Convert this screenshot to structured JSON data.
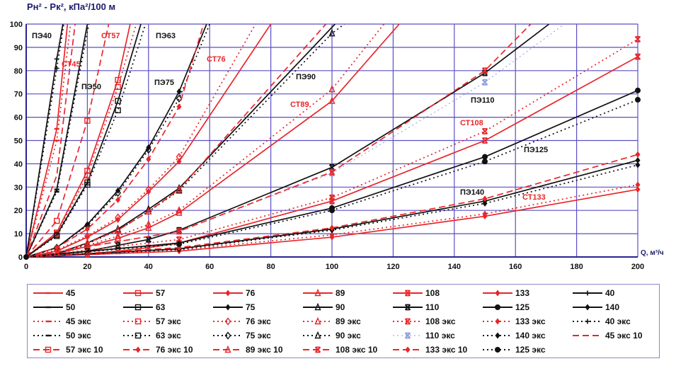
{
  "chart_data": {
    "type": "line",
    "title": "",
    "ylabel": "Pн² - Pк², кПа²/100 м",
    "xlabel": "Q, м³/ч",
    "xlim": [
      0,
      200
    ],
    "ylim": [
      0,
      100
    ],
    "xticks": [
      0,
      20,
      40,
      60,
      80,
      100,
      120,
      140,
      160,
      180,
      200
    ],
    "yticks": [
      0,
      10,
      20,
      30,
      40,
      50,
      60,
      70,
      80,
      90,
      100
    ],
    "grid": true,
    "legend_position": "bottom",
    "colors": {
      "red": "#e8262a",
      "black": "#111111",
      "blue": "#8a9ad8",
      "grid": "#5b4fc4"
    },
    "series": [
      {
        "name": "45",
        "color": "red",
        "dash": "solid",
        "marker": "bar",
        "x": [
          0,
          10,
          13.5
        ],
        "y": [
          0,
          55,
          100
        ]
      },
      {
        "name": "57",
        "color": "red",
        "dash": "solid",
        "marker": "square",
        "x": [
          0,
          10,
          20,
          30,
          34
        ],
        "y": [
          0,
          10.5,
          37,
          76,
          100
        ]
      },
      {
        "name": "76",
        "color": "red",
        "dash": "solid",
        "marker": "diamond",
        "x": [
          0,
          10,
          20,
          30,
          40,
          50,
          80
        ],
        "y": [
          0,
          2.5,
          8.5,
          16,
          28,
          41,
          100
        ]
      },
      {
        "name": "89",
        "color": "red",
        "dash": "solid",
        "marker": "triangle",
        "x": [
          0,
          10,
          20,
          30,
          40,
          50,
          100,
          122
        ],
        "y": [
          0,
          1.5,
          4.5,
          8,
          12.5,
          19,
          67,
          100
        ]
      },
      {
        "name": "108",
        "color": "red",
        "dash": "solid",
        "marker": "star",
        "x": [
          0,
          20,
          30,
          40,
          50,
          100,
          150,
          200
        ],
        "y": [
          0,
          1.2,
          2.5,
          4,
          6,
          24,
          50,
          86
        ]
      },
      {
        "name": "133",
        "color": "red",
        "dash": "solid",
        "marker": "diamond",
        "x": [
          0,
          50,
          100,
          150,
          200
        ],
        "y": [
          0,
          2.5,
          8.5,
          17.5,
          29
        ]
      },
      {
        "name": "40",
        "color": "black",
        "dash": "solid",
        "marker": "plus",
        "x": [
          0,
          10,
          12
        ],
        "y": [
          0,
          85,
          100
        ]
      },
      {
        "name": "50",
        "color": "black",
        "dash": "solid",
        "marker": "bar",
        "x": [
          0,
          10,
          20
        ],
        "y": [
          0,
          29,
          100
        ]
      },
      {
        "name": "63",
        "color": "black",
        "dash": "solid",
        "marker": "square",
        "x": [
          0,
          10,
          20,
          30,
          37.5
        ],
        "y": [
          0,
          9.5,
          32,
          67,
          100
        ]
      },
      {
        "name": "75",
        "color": "black",
        "dash": "solid",
        "marker": "diamond",
        "x": [
          0,
          10,
          20,
          30,
          40,
          50,
          59
        ],
        "y": [
          0,
          4,
          14,
          28.5,
          47,
          71,
          100
        ]
      },
      {
        "name": "90",
        "color": "black",
        "dash": "solid",
        "marker": "triangle",
        "x": [
          0,
          10,
          20,
          30,
          40,
          50,
          101
        ],
        "y": [
          0,
          1.5,
          6,
          12,
          20.5,
          29.5,
          100
        ]
      },
      {
        "name": "110",
        "color": "black",
        "dash": "solid",
        "marker": "star",
        "x": [
          0,
          20,
          30,
          40,
          50,
          100,
          150,
          171
        ],
        "y": [
          0,
          2.5,
          5,
          7.5,
          11.5,
          38.5,
          79,
          100
        ]
      },
      {
        "name": "125",
        "color": "black",
        "dash": "solid",
        "marker": "circle",
        "x": [
          0,
          50,
          100,
          150,
          200
        ],
        "y": [
          0,
          6,
          21,
          43,
          71.5
        ]
      },
      {
        "name": "140",
        "color": "black",
        "dash": "solid",
        "marker": "diamond",
        "x": [
          0,
          50,
          100,
          150,
          200
        ],
        "y": [
          0,
          3.5,
          12,
          24,
          41.5
        ]
      },
      {
        "name": "45 экс",
        "color": "red",
        "dash": "dot",
        "marker": "bar",
        "x": [
          0,
          10,
          14.5
        ],
        "y": [
          0,
          50,
          100
        ]
      },
      {
        "name": "57 экс",
        "color": "red",
        "dash": "dot",
        "marker": "square",
        "x": [
          0,
          10,
          20,
          30,
          36
        ],
        "y": [
          0,
          10,
          35,
          73,
          100
        ]
      },
      {
        "name": "76 экс",
        "color": "red",
        "dash": "dot",
        "marker": "diamond-open",
        "x": [
          0,
          10,
          20,
          30,
          40,
          50,
          75
        ],
        "y": [
          0,
          3,
          9,
          17,
          29,
          43,
          100
        ]
      },
      {
        "name": "89 экс",
        "color": "red",
        "dash": "dot",
        "marker": "triangle",
        "x": [
          0,
          10,
          20,
          30,
          40,
          50,
          100,
          117
        ],
        "y": [
          0,
          1.8,
          5,
          9,
          14,
          20,
          72,
          100
        ]
      },
      {
        "name": "108 экс",
        "color": "red",
        "dash": "dot",
        "marker": "star",
        "x": [
          0,
          50,
          100,
          150,
          200
        ],
        "y": [
          0,
          7.5,
          25.5,
          54,
          93.5
        ]
      },
      {
        "name": "133 экс",
        "color": "red",
        "dash": "dot",
        "marker": "diamond",
        "x": [
          0,
          50,
          100,
          150,
          200
        ],
        "y": [
          0,
          3,
          9.5,
          18.5,
          31
        ]
      },
      {
        "name": "40 экс",
        "color": "black",
        "dash": "dot",
        "marker": "plus",
        "x": [
          0,
          10,
          12.3
        ],
        "y": [
          0,
          81,
          100
        ]
      },
      {
        "name": "50 экс",
        "color": "black",
        "dash": "dot",
        "marker": "bar",
        "x": [
          0,
          10,
          20.5
        ],
        "y": [
          0,
          28,
          100
        ]
      },
      {
        "name": "63 экс",
        "color": "black",
        "dash": "dot",
        "marker": "square",
        "x": [
          0,
          10,
          20,
          30,
          39
        ],
        "y": [
          0,
          9,
          31,
          63,
          100
        ]
      },
      {
        "name": "75 экс",
        "color": "black",
        "dash": "dot",
        "marker": "diamond-open",
        "x": [
          0,
          10,
          20,
          30,
          40,
          50,
          60
        ],
        "y": [
          0,
          4,
          13.5,
          27.5,
          46,
          68,
          100
        ]
      },
      {
        "name": "90 экс",
        "color": "black",
        "dash": "dot",
        "marker": "triangle",
        "x": [
          0,
          10,
          20,
          30,
          40,
          50,
          100,
          104
        ],
        "y": [
          0,
          1.4,
          5.7,
          11.5,
          19.5,
          28.5,
          96,
          100
        ]
      },
      {
        "name": "110 экс",
        "color": "blue",
        "dash": "dot",
        "marker": "star",
        "x": [
          0,
          50,
          100,
          150,
          176
        ],
        "y": [
          0,
          11,
          36,
          75,
          100
        ]
      },
      {
        "name": "140 экс",
        "color": "black",
        "dash": "dot",
        "marker": "diamond",
        "x": [
          0,
          50,
          100,
          150,
          200
        ],
        "y": [
          0,
          3.3,
          11.5,
          23,
          39.5
        ]
      },
      {
        "name": "45 экс 10",
        "color": "red",
        "dash": "dash",
        "marker": "none",
        "x": [
          0,
          10,
          16
        ],
        "y": [
          0,
          35,
          100
        ]
      },
      {
        "name": "57 экс 10",
        "color": "red",
        "dash": "dash",
        "marker": "square",
        "x": [
          0,
          10,
          20,
          27
        ],
        "y": [
          0,
          15.5,
          58.5,
          100
        ]
      },
      {
        "name": "76 экс 10",
        "color": "red",
        "dash": "dash",
        "marker": "diamond",
        "x": [
          0,
          10,
          20,
          30,
          40,
          50,
          58
        ],
        "y": [
          0,
          4,
          12,
          24.5,
          42,
          64.5,
          100
        ]
      },
      {
        "name": "89 экс 10",
        "color": "red",
        "dash": "dash",
        "marker": "triangle",
        "x": [
          0,
          10,
          20,
          30,
          40,
          50,
          98
        ],
        "y": [
          0,
          1.7,
          6,
          11.5,
          19.5,
          29,
          100
        ]
      },
      {
        "name": "108 экс 10",
        "color": "red",
        "dash": "dash",
        "marker": "star",
        "x": [
          0,
          50,
          100,
          150,
          165
        ],
        "y": [
          0,
          11,
          36.5,
          80,
          100
        ]
      },
      {
        "name": "133 экс 10",
        "color": "red",
        "dash": "dash",
        "marker": "diamond",
        "x": [
          0,
          50,
          100,
          150,
          200
        ],
        "y": [
          0,
          4,
          12.5,
          25,
          44
        ]
      },
      {
        "name": "125 экс",
        "color": "black",
        "dash": "dot",
        "marker": "circle",
        "x": [
          0,
          50,
          100,
          150,
          200
        ],
        "y": [
          0,
          5.5,
          20,
          41,
          67.5
        ]
      }
    ],
    "annotations": [
      "ПЭ40",
      "СТ45",
      "ПЭ50",
      "СТ57",
      "ПЭ63",
      "ПЭ75",
      "СТ76",
      "ПЭ90",
      "СТ89",
      "ПЭ110",
      "СТ108",
      "ПЭ125",
      "ПЭ140",
      "СТ133"
    ]
  }
}
